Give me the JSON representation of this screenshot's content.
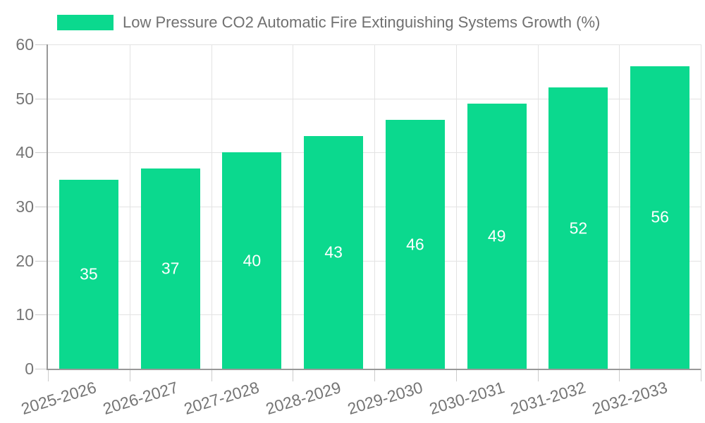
{
  "legend": {
    "label": "Low Pressure CO2 Automatic Fire Extinguishing Systems Growth (%)",
    "swatch_color": "#0bd98e"
  },
  "chart_data": {
    "type": "bar",
    "title": "Low Pressure CO2 Automatic Fire Extinguishing Systems Growth (%)",
    "categories": [
      "2025-2026",
      "2026-2027",
      "2027-2028",
      "2028-2029",
      "2029-2030",
      "2030-2031",
      "2031-2032",
      "2032-2033"
    ],
    "series": [
      {
        "name": "Low Pressure CO2 Automatic Fire Extinguishing Systems Growth (%)",
        "values": [
          35,
          37,
          40,
          43,
          46,
          49,
          52,
          56
        ]
      }
    ],
    "xlabel": "",
    "ylabel": "",
    "ylim": [
      0,
      60
    ],
    "yticks": [
      0,
      10,
      20,
      30,
      40,
      50,
      60
    ],
    "grid": true,
    "legend_position": "top-left",
    "bar_color": "#0bd98e",
    "value_label_color": "#ffffff",
    "axis_color": "#999999",
    "grid_color": "#e3e3e3",
    "tick_color": "#cccccc",
    "text_color": "#757575",
    "x_label_rotation_deg": -17
  }
}
